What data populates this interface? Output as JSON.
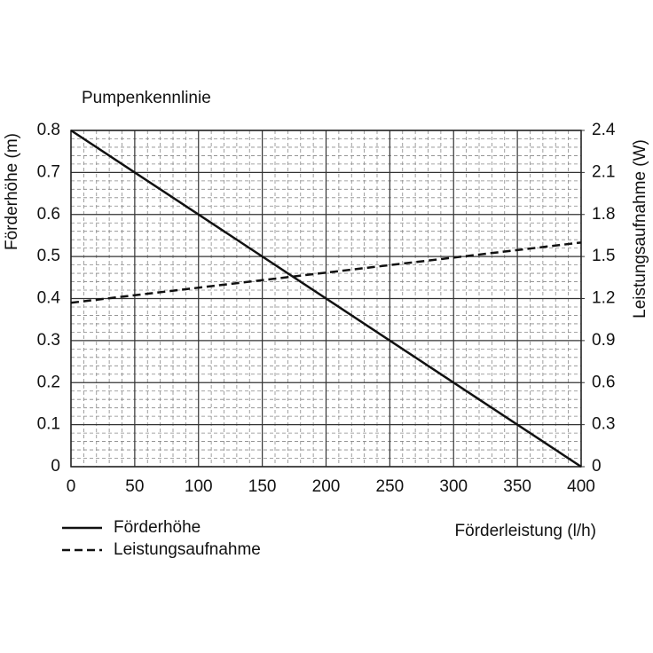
{
  "chart_data": {
    "type": "line",
    "title": "Pumpenkennlinie",
    "x_label": "Förderleistung (l/h)",
    "y_label": "Förderhöhe (m)",
    "y2_label": "Leistungsaufnahme (W)",
    "x": [
      0,
      400
    ],
    "series": [
      {
        "name": "Förderhöhe",
        "color": "#111111",
        "line_style": "solid",
        "values": [
          0.8,
          0
        ]
      },
      {
        "name": "Leistungsaufnahme",
        "color": "#111111",
        "line_style": "dashed",
        "axis": "y2",
        "values": [
          1.17,
          1.6
        ]
      }
    ],
    "xlim": [
      0,
      400
    ],
    "xticks": [
      0,
      50,
      100,
      150,
      200,
      250,
      300,
      350,
      400
    ],
    "ylim": [
      0,
      0.8
    ],
    "yticks": [
      0,
      0.1,
      0.2,
      0.3,
      0.4,
      0.5,
      0.6,
      0.7,
      0.8
    ],
    "y2lim": [
      0,
      2.4
    ],
    "y2ticks": [
      0,
      0.3,
      0.6,
      0.9,
      1.2,
      1.5,
      1.8,
      2.1,
      2.4
    ],
    "grid": true,
    "minor_grid": true
  }
}
